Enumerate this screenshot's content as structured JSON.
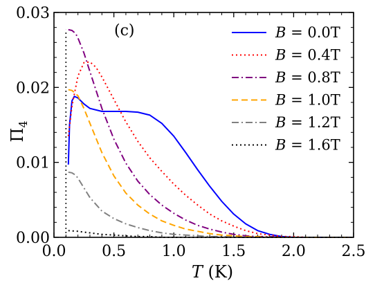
{
  "chart_data": {
    "type": "line",
    "panel_label": "(c)",
    "xlabel": {
      "italic": "T",
      "rest": " (K)"
    },
    "ylabel": {
      "base": "Π",
      "sub": "4"
    },
    "xlim": [
      0.0,
      2.5
    ],
    "ylim": [
      0.0,
      0.03
    ],
    "xticks": [
      0.0,
      0.5,
      1.0,
      1.5,
      2.0,
      2.5
    ],
    "xtick_labels": [
      "0.0",
      "0.5",
      "1.0",
      "1.5",
      "2.0",
      "2.5"
    ],
    "yticks": [
      0.0,
      0.01,
      0.02,
      0.03
    ],
    "ytick_labels": [
      "0.00",
      "0.01",
      "0.02",
      "0.03"
    ],
    "legend_position": "top-right",
    "grid": false,
    "series": [
      {
        "name": "B = 0.0T",
        "label_lhs": "B",
        "label_rhs": " = 0.0T",
        "color": "#0000ff",
        "dash": "solid",
        "x": [
          0.12,
          0.13,
          0.15,
          0.17,
          0.2,
          0.25,
          0.3,
          0.4,
          0.5,
          0.6,
          0.7,
          0.8,
          0.9,
          1.0,
          1.1,
          1.2,
          1.3,
          1.4,
          1.5,
          1.6,
          1.7,
          1.8,
          1.9,
          2.0,
          2.1,
          2.2,
          2.3,
          2.4,
          2.5
        ],
        "y": [
          0.0097,
          0.015,
          0.0182,
          0.0188,
          0.0186,
          0.0178,
          0.0172,
          0.0168,
          0.0168,
          0.0168,
          0.0167,
          0.0163,
          0.0152,
          0.0135,
          0.0113,
          0.009,
          0.0068,
          0.0048,
          0.0031,
          0.0018,
          0.0009,
          0.0004,
          0.0001,
          0.0,
          0.0,
          0.0,
          0.0,
          0.0,
          0.0
        ]
      },
      {
        "name": "B = 0.4T",
        "label_lhs": "B",
        "label_rhs": " = 0.4T",
        "color": "#ff0000",
        "dash": "dot",
        "x": [
          0.12,
          0.15,
          0.2,
          0.25,
          0.3,
          0.35,
          0.4,
          0.5,
          0.6,
          0.7,
          0.8,
          0.9,
          1.0,
          1.1,
          1.2,
          1.3,
          1.4,
          1.5,
          1.6,
          1.7,
          1.8,
          1.9,
          2.0,
          2.1,
          2.2,
          2.3,
          2.4,
          2.5
        ],
        "y": [
          0.0135,
          0.0175,
          0.0215,
          0.0233,
          0.0234,
          0.0227,
          0.0214,
          0.0184,
          0.0154,
          0.0128,
          0.0106,
          0.0088,
          0.0071,
          0.0056,
          0.0043,
          0.0031,
          0.0022,
          0.0015,
          0.0009,
          0.0005,
          0.0003,
          0.0001,
          0.0001,
          0.0,
          0.0,
          0.0,
          0.0,
          0.0
        ]
      },
      {
        "name": "B = 0.8T",
        "label_lhs": "B",
        "label_rhs": " = 0.8T",
        "color": "#800080",
        "dash": "dashdot",
        "x": [
          0.12,
          0.15,
          0.18,
          0.2,
          0.25,
          0.3,
          0.4,
          0.5,
          0.6,
          0.7,
          0.8,
          0.9,
          1.0,
          1.1,
          1.2,
          1.3,
          1.4,
          1.5,
          1.6,
          1.7,
          1.8,
          1.9,
          2.0,
          2.1,
          2.2,
          2.3,
          2.4,
          2.5
        ],
        "y": [
          0.0277,
          0.0276,
          0.0272,
          0.0266,
          0.0246,
          0.0221,
          0.0172,
          0.0131,
          0.0099,
          0.0075,
          0.0057,
          0.0043,
          0.0032,
          0.0023,
          0.0016,
          0.0011,
          0.0007,
          0.0004,
          0.0002,
          0.0001,
          0.0001,
          0.0,
          0.0,
          0.0,
          0.0,
          0.0,
          0.0,
          0.0
        ]
      },
      {
        "name": "B = 1.0T",
        "label_lhs": "B",
        "label_rhs": " = 1.0T",
        "color": "#ffa500",
        "dash": "dash",
        "x": [
          0.12,
          0.15,
          0.2,
          0.25,
          0.3,
          0.4,
          0.5,
          0.6,
          0.7,
          0.8,
          0.9,
          1.0,
          1.1,
          1.2,
          1.3,
          1.4,
          1.5,
          1.6,
          1.7,
          1.8,
          1.9,
          2.0,
          2.1,
          2.2,
          2.3,
          2.4,
          2.5
        ],
        "y": [
          0.0197,
          0.0196,
          0.0189,
          0.0172,
          0.0152,
          0.0113,
          0.0082,
          0.0059,
          0.0043,
          0.0031,
          0.0022,
          0.0016,
          0.0011,
          0.0008,
          0.0005,
          0.0003,
          0.0002,
          0.0001,
          0.0001,
          0.0,
          0.0,
          0.0,
          0.0,
          0.0,
          0.0,
          0.0,
          0.0
        ]
      },
      {
        "name": "B = 1.2T",
        "label_lhs": "B",
        "label_rhs": " = 1.2T",
        "color": "#808080",
        "dash": "dashdot",
        "x": [
          0.12,
          0.15,
          0.18,
          0.2,
          0.25,
          0.3,
          0.4,
          0.5,
          0.6,
          0.7,
          0.8,
          0.9,
          1.0,
          1.1,
          1.2,
          1.3,
          1.4,
          1.5,
          1.6,
          1.7,
          1.8,
          1.9,
          2.0,
          2.1,
          2.2,
          2.3,
          2.4,
          2.5
        ],
        "y": [
          0.0087,
          0.0086,
          0.0083,
          0.0079,
          0.0066,
          0.0053,
          0.0035,
          0.0025,
          0.0018,
          0.0013,
          0.0009,
          0.0006,
          0.0004,
          0.0003,
          0.0002,
          0.0001,
          0.0001,
          0.0,
          0.0,
          0.0,
          0.0,
          0.0,
          0.0,
          0.0,
          0.0,
          0.0,
          0.0,
          0.0
        ]
      },
      {
        "name": "B = 1.6T",
        "label_lhs": "B",
        "label_rhs": " = 1.6T",
        "color": "#000000",
        "dash": "dot",
        "x": [
          0.12,
          0.2,
          0.3,
          0.4,
          0.5,
          0.6,
          0.7,
          0.8,
          0.9,
          1.0,
          1.2,
          1.4,
          1.6,
          1.8,
          2.0,
          2.5
        ],
        "y": [
          0.0009,
          0.0008,
          0.0006,
          0.0004,
          0.0003,
          0.0002,
          0.0001,
          0.0001,
          0.0,
          0.0,
          0.0,
          0.0,
          0.0,
          0.0,
          0.0,
          0.0
        ]
      }
    ],
    "vertical_marker": {
      "x": 0.1,
      "y_top": 0.0277,
      "color": "#000000",
      "dash": "dot"
    }
  }
}
